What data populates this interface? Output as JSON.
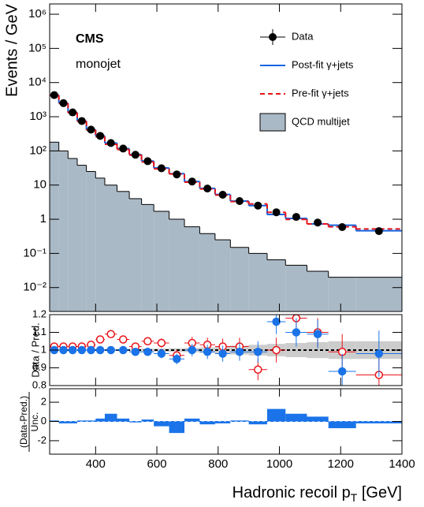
{
  "chart_data": [
    {
      "type": "histogram",
      "ylog": true,
      "ylabel": "Events / GeV",
      "annotations": [
        "CMS",
        "monojet"
      ],
      "bins": [
        250,
        280,
        310,
        340,
        370,
        400,
        430,
        470,
        510,
        550,
        590,
        640,
        690,
        740,
        790,
        840,
        900,
        960,
        1020,
        1090,
        1160,
        1250,
        1400
      ],
      "xlim": [
        250,
        1400
      ],
      "ylim": [
        0.002,
        2000000
      ],
      "yticks": [
        {
          "value": 0.01,
          "label": "10⁻²"
        },
        {
          "value": 0.1,
          "label": "10⁻¹"
        },
        1,
        10,
        {
          "value": 100,
          "label": "10²"
        },
        {
          "value": 1000,
          "label": "10³"
        },
        {
          "value": 10000,
          "label": "10⁴"
        },
        {
          "value": 100000,
          "label": "10⁵"
        },
        {
          "value": 1000000,
          "label": "10⁶"
        }
      ],
      "series": [
        {
          "name": "Data",
          "style": "points",
          "color": "#000000",
          "values": [
            4300,
            2500,
            1340,
            750,
            420,
            275,
            170,
            117,
            77,
            50,
            31,
            20.5,
            12.7,
            7.9,
            5.2,
            3.4,
            2.5,
            1.6,
            1.17,
            0.8,
            0.59,
            0.45
          ]
        },
        {
          "name": "Post-fit γ+jets",
          "style": "step",
          "color": "#1565e0",
          "values": [
            4300,
            2500,
            1340,
            750,
            420,
            275,
            170,
            117,
            78,
            50.5,
            31.6,
            21.6,
            12.7,
            8.0,
            5.3,
            3.4,
            2.5,
            1.38,
            1.06,
            0.73,
            0.67,
            0.46
          ]
        },
        {
          "name": "Pre-fit γ+jets",
          "style": "dashed",
          "color": "#e8141a",
          "values": [
            4200,
            2450,
            1310,
            735,
            410,
            260,
            156,
            110,
            75,
            47.6,
            29.8,
            21.1,
            12.2,
            7.7,
            5.1,
            3.3,
            2.8,
            1.6,
            0.99,
            0.73,
            0.6,
            0.52
          ]
        },
        {
          "name": "QCD multijet",
          "style": "filled",
          "color": "#aab9c6",
          "values": [
            180,
            100,
            60,
            38,
            25,
            16,
            10,
            6.5,
            4,
            2.7,
            1.7,
            1.0,
            0.6,
            0.38,
            0.25,
            0.15,
            0.1,
            0.065,
            0.045,
            0.03,
            0.02,
            0.02
          ]
        }
      ]
    },
    {
      "type": "ratio",
      "ylabel": "Data / Pred.",
      "ylim": [
        0.8,
        1.2
      ],
      "yticks": [
        0.8,
        0.9,
        1,
        1.1,
        1.2
      ],
      "refline": 1,
      "band_color": "#cccccc",
      "band": [
        0.003,
        0.003,
        0.003,
        0.004,
        0.004,
        0.005,
        0.005,
        0.006,
        0.007,
        0.008,
        0.009,
        0.01,
        0.012,
        0.015,
        0.02,
        0.025,
        0.03,
        0.035,
        0.04,
        0.045,
        0.05,
        0.05
      ],
      "series": [
        {
          "style": "open",
          "color": "#e8141a",
          "values": [
            1.02,
            1.02,
            1.02,
            1.02,
            1.03,
            1.06,
            1.09,
            1.06,
            1.02,
            1.05,
            1.04,
            0.97,
            1.04,
            1.03,
            1.02,
            1.02,
            0.89,
            1.0,
            1.18,
            1.1,
            0.99,
            0.86
          ],
          "errors": [
            0.005,
            0.006,
            0.007,
            0.008,
            0.01,
            0.012,
            0.014,
            0.016,
            0.02,
            0.022,
            0.026,
            0.03,
            0.035,
            0.04,
            0.045,
            0.05,
            0.06,
            0.07,
            0.08,
            0.08,
            0.1,
            0.13
          ]
        },
        {
          "style": "filled",
          "color": "#1a73e8",
          "values": [
            1.0,
            1.0,
            1.0,
            1.0,
            1.0,
            1.0,
            1.0,
            1.0,
            0.99,
            0.99,
            0.98,
            0.95,
            1.0,
            0.99,
            0.98,
            0.99,
            0.99,
            1.16,
            1.1,
            1.09,
            0.88,
            0.98
          ],
          "errors": [
            0.005,
            0.006,
            0.007,
            0.008,
            0.01,
            0.012,
            0.014,
            0.016,
            0.02,
            0.022,
            0.026,
            0.03,
            0.035,
            0.04,
            0.045,
            0.05,
            0.06,
            0.07,
            0.08,
            0.08,
            0.1,
            0.13
          ]
        }
      ]
    },
    {
      "type": "pull",
      "ylabel": "(Data-Pred.)",
      "ylabel_denominator": "Unc.",
      "ylim": [
        -3.4,
        3.4
      ],
      "yticks": [
        -2,
        0,
        2
      ],
      "refline": 0,
      "color": "#1a73e8",
      "values": [
        0.1,
        -0.2,
        -0.2,
        0.1,
        0.1,
        0.3,
        0.8,
        0.3,
        -0.1,
        0.2,
        -0.5,
        -1.2,
        0.3,
        -0.3,
        -0.2,
        0.1,
        -0.3,
        1.3,
        0.8,
        0.5,
        -0.7,
        -0.2
      ],
      "xlim": [
        250,
        1400
      ],
      "xticks": [
        400,
        600,
        800,
        1000,
        1200,
        1400
      ],
      "xlabel": "Hadronic recoil p",
      "xlabel_sub": "T",
      "xlabel_unit": " [GeV]"
    }
  ]
}
